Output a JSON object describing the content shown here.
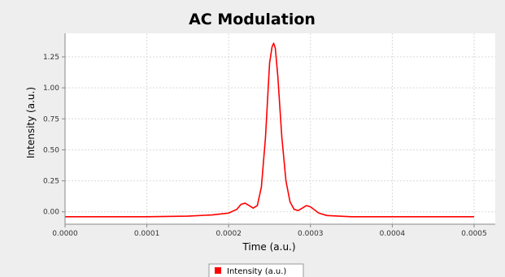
{
  "chart_data": {
    "type": "line",
    "title": "AC Modulation",
    "xlabel": "Time (a.u.)",
    "ylabel": "Intensity (a.u.)",
    "xlim": [
      0,
      0.0005
    ],
    "ylim": [
      -0.1,
      1.44
    ],
    "xticks": [
      0,
      0.0001,
      0.0002,
      0.0003,
      0.0004,
      0.0005
    ],
    "xtick_labels": [
      "0.0000",
      "0.0001",
      "0.0002",
      "0.0003",
      "0.0004",
      "0.0005"
    ],
    "yticks": [
      0,
      0.25,
      0.5,
      0.75,
      1.0,
      1.25
    ],
    "ytick_labels": [
      "0.00",
      "0.25",
      "0.50",
      "0.75",
      "1.00",
      "1.25"
    ],
    "grid": true,
    "legend_position": "bottom-center",
    "series": [
      {
        "name": "Intensity (a.u.)",
        "color": "#ff0000",
        "x": [
          0,
          5e-05,
          0.0001,
          0.00015,
          0.00018,
          0.0002,
          0.00021,
          0.000215,
          0.00022,
          0.000225,
          0.00023,
          0.000235,
          0.00024,
          0.000245,
          0.00025,
          0.000253,
          0.000255,
          0.000257,
          0.00026,
          0.000265,
          0.00027,
          0.000275,
          0.00028,
          0.000285,
          0.00029,
          0.000295,
          0.0003,
          0.00031,
          0.00032,
          0.00035,
          0.0004,
          0.00045,
          0.0005
        ],
        "y": [
          -0.04,
          -0.04,
          -0.04,
          -0.035,
          -0.025,
          -0.01,
          0.02,
          0.06,
          0.07,
          0.05,
          0.03,
          0.05,
          0.2,
          0.6,
          1.2,
          1.33,
          1.36,
          1.32,
          1.1,
          0.6,
          0.25,
          0.08,
          0.02,
          0.01,
          0.03,
          0.05,
          0.04,
          -0.01,
          -0.03,
          -0.04,
          -0.04,
          -0.04,
          -0.04
        ]
      }
    ]
  }
}
